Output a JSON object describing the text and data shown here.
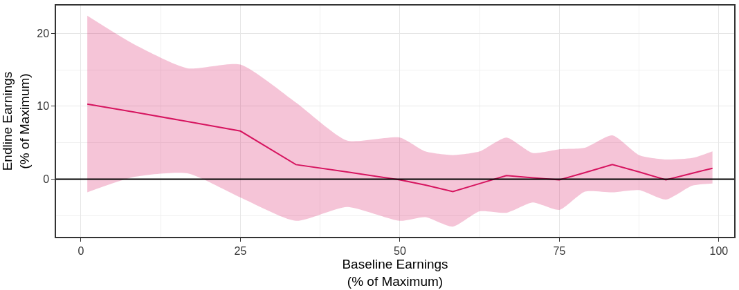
{
  "chart_data": {
    "type": "line",
    "xlabel": "Baseline Earnings\n(% of Maximum)",
    "ylabel": "Endline Earnings\n(% of Maximum)",
    "xlim": [
      -3.9,
      102.4
    ],
    "ylim": [
      -7.9,
      23.8
    ],
    "xticks": [
      0,
      25,
      50,
      75,
      100
    ],
    "yticks": [
      0,
      10,
      20
    ],
    "grid": true,
    "ref_lines": [
      {
        "axis": "y",
        "value": 0,
        "color": "#000000"
      }
    ],
    "series": [
      {
        "color": "#d6145f",
        "x": [
          1,
          8.3,
          16.7,
          25,
          33.7,
          41.7,
          50,
          54,
          58.3,
          62.5,
          66.7,
          70.8,
          75,
          79,
          83.3,
          87.5,
          91.7,
          95.8,
          99
        ],
        "values": [
          10.3,
          9.2,
          7.9,
          6.6,
          2.0,
          1.0,
          -0.1,
          -0.8,
          -1.7,
          -0.6,
          0.5,
          0.2,
          -0.1,
          0.9,
          2.0,
          1.0,
          -0.1,
          0.8,
          1.5
        ],
        "upper": [
          22.4,
          18.5,
          15.2,
          15.7,
          10.5,
          5.3,
          5.7,
          3.8,
          3.3,
          3.8,
          5.7,
          3.6,
          4.1,
          4.3,
          6.0,
          3.3,
          2.7,
          2.9,
          3.8
        ],
        "lower": [
          -1.8,
          0.3,
          0.8,
          -2.5,
          -5.7,
          -3.8,
          -5.7,
          -5.2,
          -6.5,
          -4.4,
          -4.6,
          -3.2,
          -4.2,
          -1.7,
          -1.8,
          -1.5,
          -2.8,
          -0.9,
          -0.6
        ]
      }
    ]
  }
}
